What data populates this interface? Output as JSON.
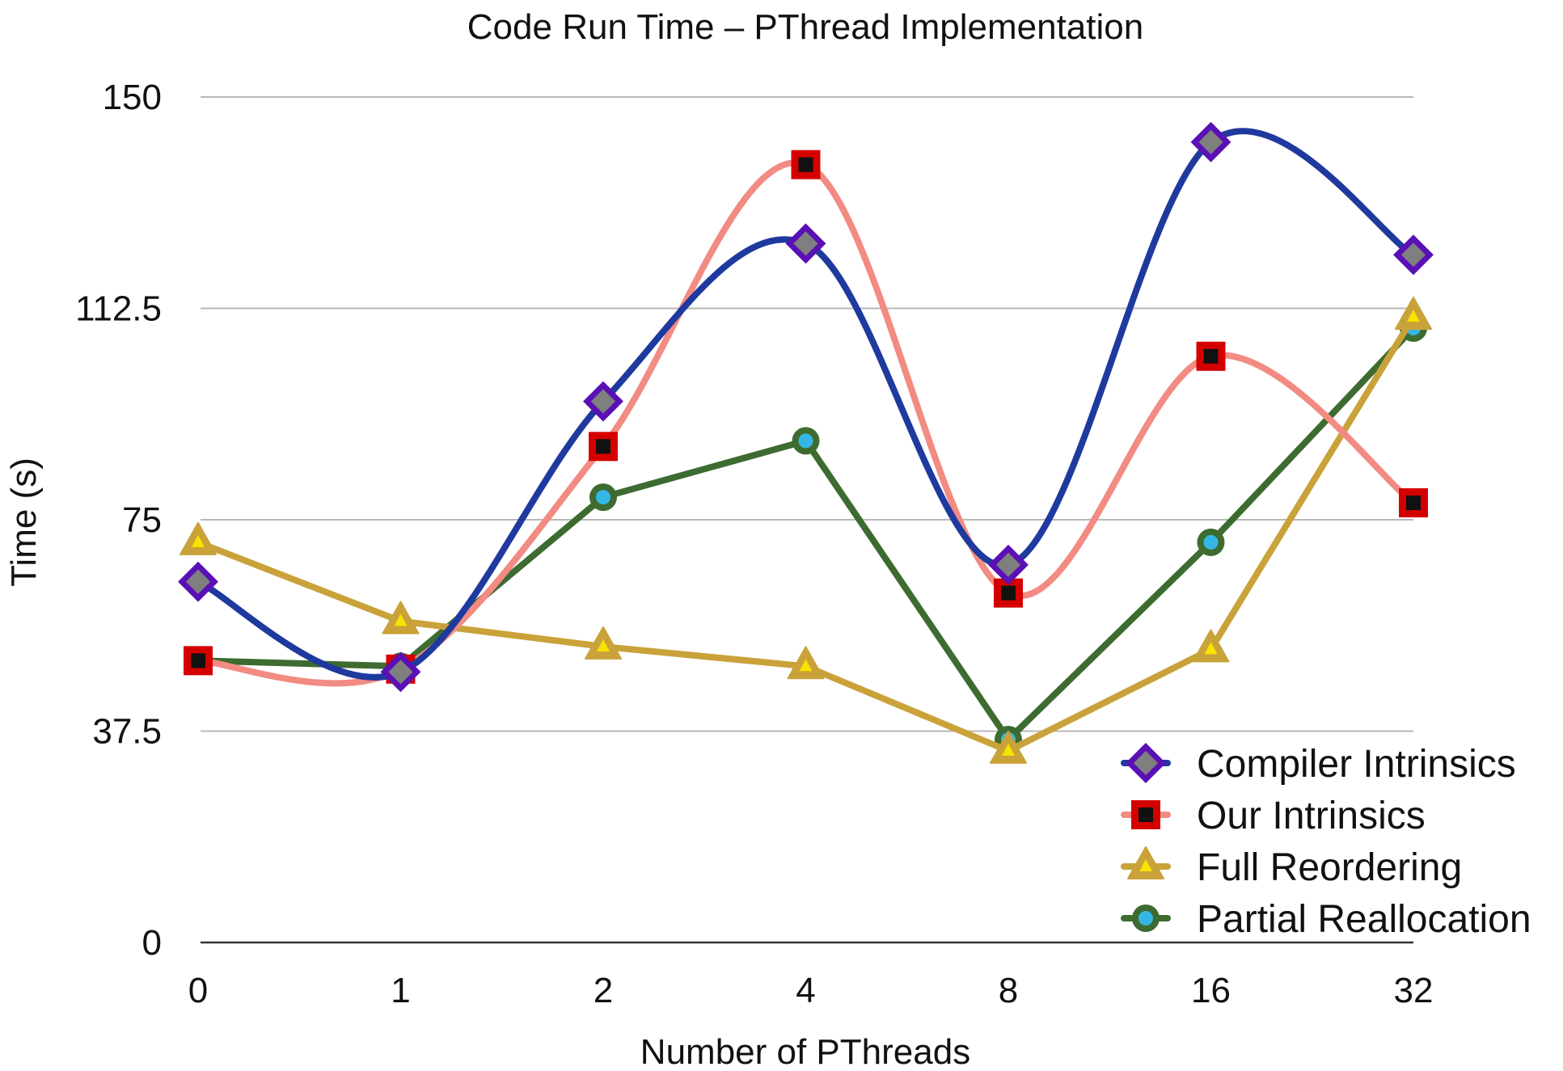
{
  "chart_data": {
    "type": "line",
    "title": "Code Run Time – PThread Implementation",
    "xlabel": "Number of PThreads",
    "ylabel": "Time (s)",
    "categories": [
      "0",
      "1",
      "2",
      "4",
      "8",
      "16",
      "32"
    ],
    "y_ticks": [
      "0",
      "37.5",
      "75",
      "112.5",
      "150"
    ],
    "ylim": [
      0,
      150
    ],
    "grid": true,
    "legend_position": "bottom-right",
    "series": [
      {
        "name": "Compiler Intrinsics",
        "values": [
          64,
          48,
          96,
          124,
          67,
          142,
          122
        ],
        "line_color": "#1f3a9e",
        "marker": "diamond",
        "marker_fill": "#7f7f7f",
        "marker_stroke": "#5a10b5",
        "smooth": true
      },
      {
        "name": "Our Intrinsics",
        "values": [
          50,
          48.5,
          88,
          138,
          62,
          104,
          78
        ],
        "line_color": "#f28b82",
        "marker": "square",
        "marker_fill": "#111111",
        "marker_stroke": "#d40000",
        "smooth": true
      },
      {
        "name": "Full Reordering",
        "values": [
          71,
          57,
          52.5,
          49,
          34,
          52,
          111
        ],
        "line_color": "#c9a23a",
        "marker": "triangle",
        "marker_fill": "#f4e400",
        "marker_stroke": "#c9a23a",
        "smooth": false
      },
      {
        "name": "Partial Reallocation",
        "values": [
          50,
          49,
          79,
          89,
          36,
          71,
          109
        ],
        "line_color": "#3d6b30",
        "marker": "circle",
        "marker_fill": "#35b7e6",
        "marker_stroke": "#3d6b30",
        "smooth": false
      }
    ]
  }
}
